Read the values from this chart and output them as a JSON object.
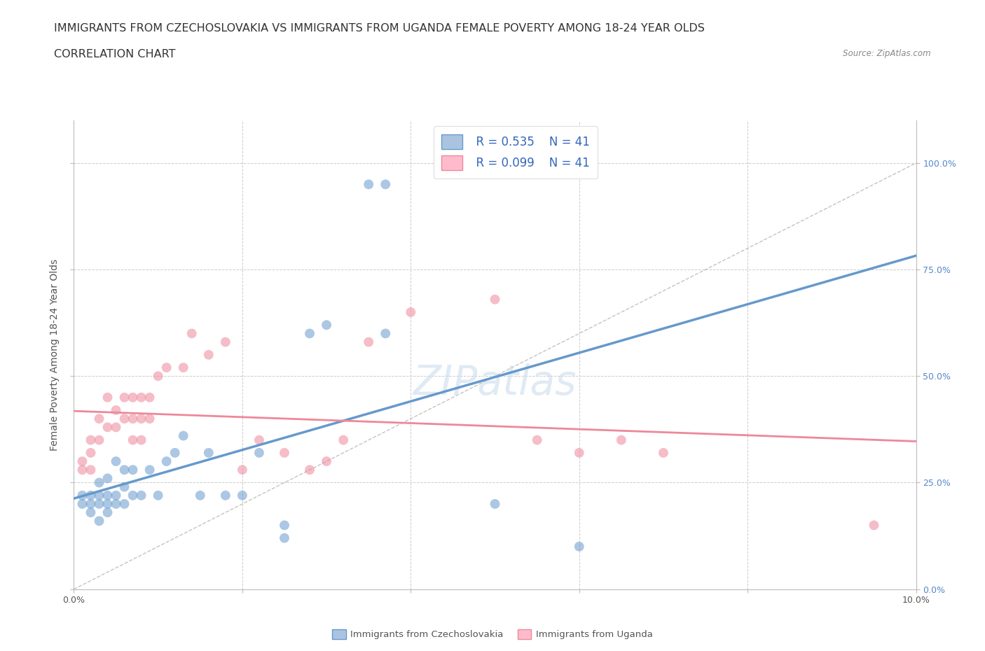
{
  "title_line1": "IMMIGRANTS FROM CZECHOSLOVAKIA VS IMMIGRANTS FROM UGANDA FEMALE POVERTY AMONG 18-24 YEAR OLDS",
  "title_line2": "CORRELATION CHART",
  "source_text": "Source: ZipAtlas.com",
  "ylabel": "Female Poverty Among 18-24 Year Olds",
  "xlim": [
    0.0,
    0.1
  ],
  "ylim": [
    0.0,
    1.1
  ],
  "legend_r1": "R = 0.535",
  "legend_n1": "N = 41",
  "legend_r2": "R = 0.099",
  "legend_n2": "N = 41",
  "blue_color": "#6699CC",
  "pink_color": "#EE8899",
  "blue_fill": "#AAC4E0",
  "pink_fill": "#FFBBCC",
  "title_fontsize": 11.5,
  "subtitle_fontsize": 11.5,
  "axis_label_fontsize": 10,
  "tick_fontsize": 9,
  "czech_x": [
    0.001,
    0.001,
    0.002,
    0.002,
    0.002,
    0.003,
    0.003,
    0.003,
    0.003,
    0.004,
    0.004,
    0.004,
    0.004,
    0.005,
    0.005,
    0.005,
    0.006,
    0.006,
    0.006,
    0.007,
    0.007,
    0.008,
    0.009,
    0.01,
    0.011,
    0.012,
    0.013,
    0.015,
    0.016,
    0.018,
    0.02,
    0.022,
    0.025,
    0.025,
    0.028,
    0.03,
    0.035,
    0.037,
    0.037,
    0.05,
    0.06
  ],
  "czech_y": [
    0.2,
    0.22,
    0.18,
    0.2,
    0.22,
    0.16,
    0.2,
    0.22,
    0.25,
    0.18,
    0.2,
    0.22,
    0.26,
    0.2,
    0.22,
    0.3,
    0.2,
    0.24,
    0.28,
    0.22,
    0.28,
    0.22,
    0.28,
    0.22,
    0.3,
    0.32,
    0.36,
    0.22,
    0.32,
    0.22,
    0.22,
    0.32,
    0.12,
    0.15,
    0.6,
    0.62,
    0.95,
    0.95,
    0.6,
    0.2,
    0.1
  ],
  "uganda_x": [
    0.001,
    0.001,
    0.002,
    0.002,
    0.002,
    0.003,
    0.003,
    0.004,
    0.004,
    0.005,
    0.005,
    0.006,
    0.006,
    0.007,
    0.007,
    0.007,
    0.008,
    0.008,
    0.008,
    0.009,
    0.009,
    0.01,
    0.011,
    0.013,
    0.014,
    0.016,
    0.018,
    0.02,
    0.022,
    0.025,
    0.028,
    0.03,
    0.032,
    0.035,
    0.04,
    0.05,
    0.055,
    0.06,
    0.065,
    0.07,
    0.095
  ],
  "uganda_y": [
    0.28,
    0.3,
    0.28,
    0.32,
    0.35,
    0.35,
    0.4,
    0.38,
    0.45,
    0.38,
    0.42,
    0.4,
    0.45,
    0.35,
    0.4,
    0.45,
    0.35,
    0.4,
    0.45,
    0.4,
    0.45,
    0.5,
    0.52,
    0.52,
    0.6,
    0.55,
    0.58,
    0.28,
    0.35,
    0.32,
    0.28,
    0.3,
    0.35,
    0.58,
    0.65,
    0.68,
    0.35,
    0.32,
    0.35,
    0.32,
    0.15
  ]
}
